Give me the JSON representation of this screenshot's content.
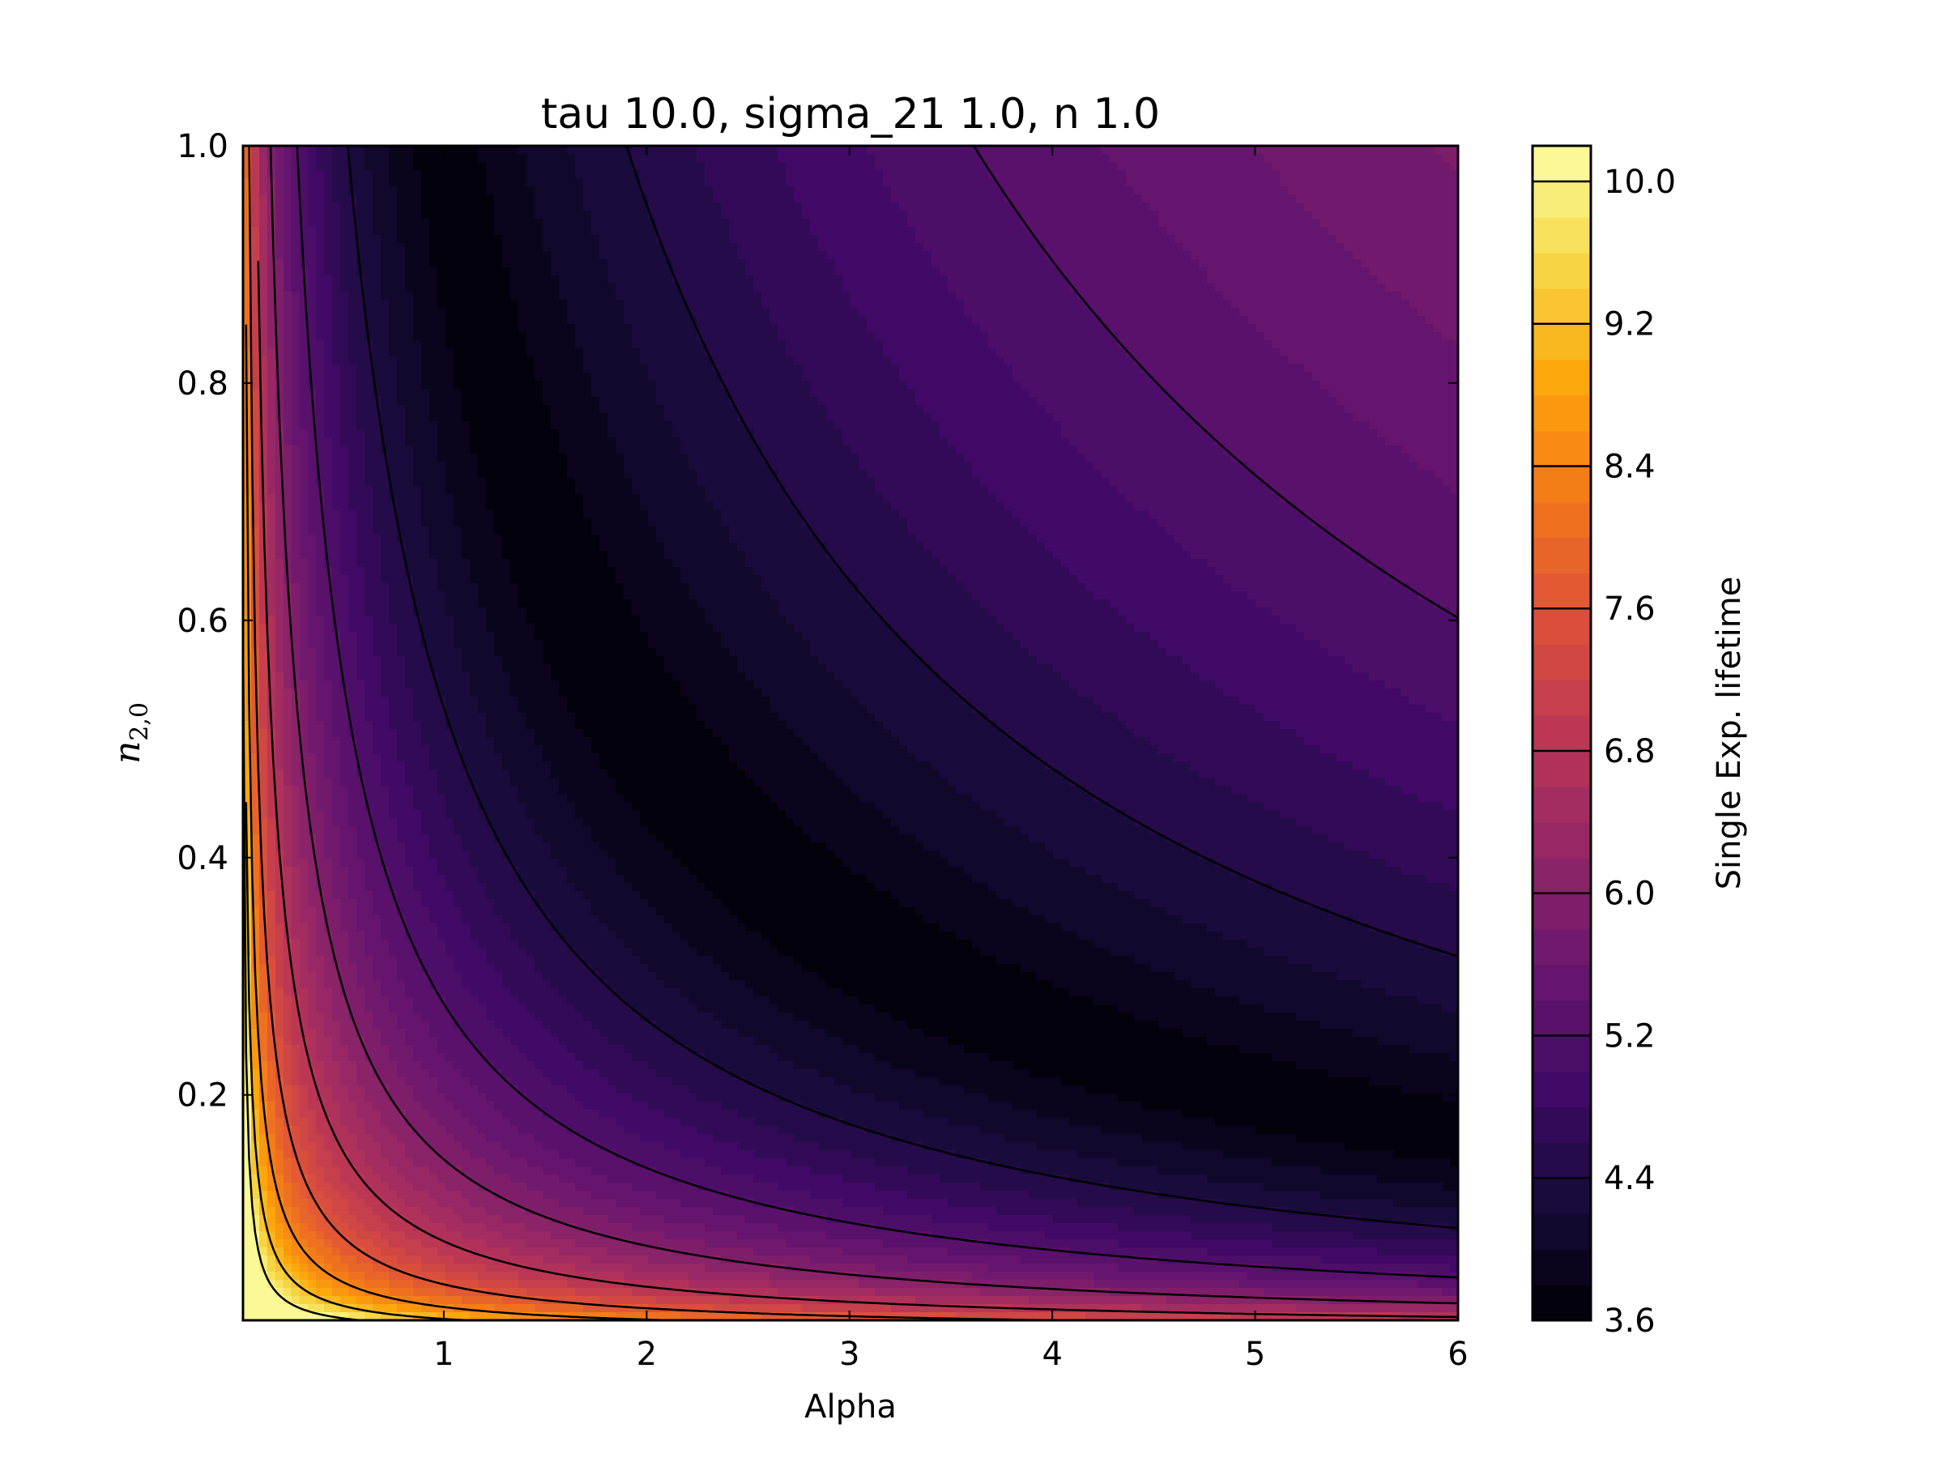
{
  "chart_data": {
    "type": "heatmap",
    "subtype": "filled-contour",
    "title": "tau 10.0, sigma_21 1.0, n 1.0",
    "xlabel": "Alpha",
    "ylabel": "n_{2,0}",
    "ylabel_base": "n",
    "ylabel_sub": "2,0",
    "xlim": [
      0.01,
      6.0
    ],
    "ylim": [
      0.01,
      1.0
    ],
    "x_ticks": [
      1,
      2,
      3,
      4,
      5,
      6
    ],
    "x_tick_labels": [
      "1",
      "2",
      "3",
      "4",
      "5",
      "6"
    ],
    "y_ticks": [
      0.2,
      0.4,
      0.6,
      0.8,
      1.0
    ],
    "y_tick_labels": [
      "0.2",
      "0.4",
      "0.6",
      "0.8",
      "1.0"
    ],
    "colormap": "inferno",
    "colorbar": {
      "label": "Single Exp. lifetime",
      "range": [
        3.6,
        10.2
      ],
      "tick_values": [
        3.6,
        4.4,
        5.2,
        6.0,
        6.8,
        7.6,
        8.4,
        9.2,
        10.0
      ],
      "tick_labels": [
        "3.6",
        "4.4",
        "5.2",
        "6.0",
        "6.8",
        "7.6",
        "8.4",
        "9.2",
        "10.0"
      ],
      "filled_level_step": 0.2,
      "line_level_step": 0.8
    },
    "contour_lines_color": "#000000",
    "minimum_valley": {
      "description": "Darkest band along curve alpha * n20 = const",
      "min_value": 3.6,
      "product_alpha_n20": 1.0
    },
    "max_value": 10.2
  }
}
